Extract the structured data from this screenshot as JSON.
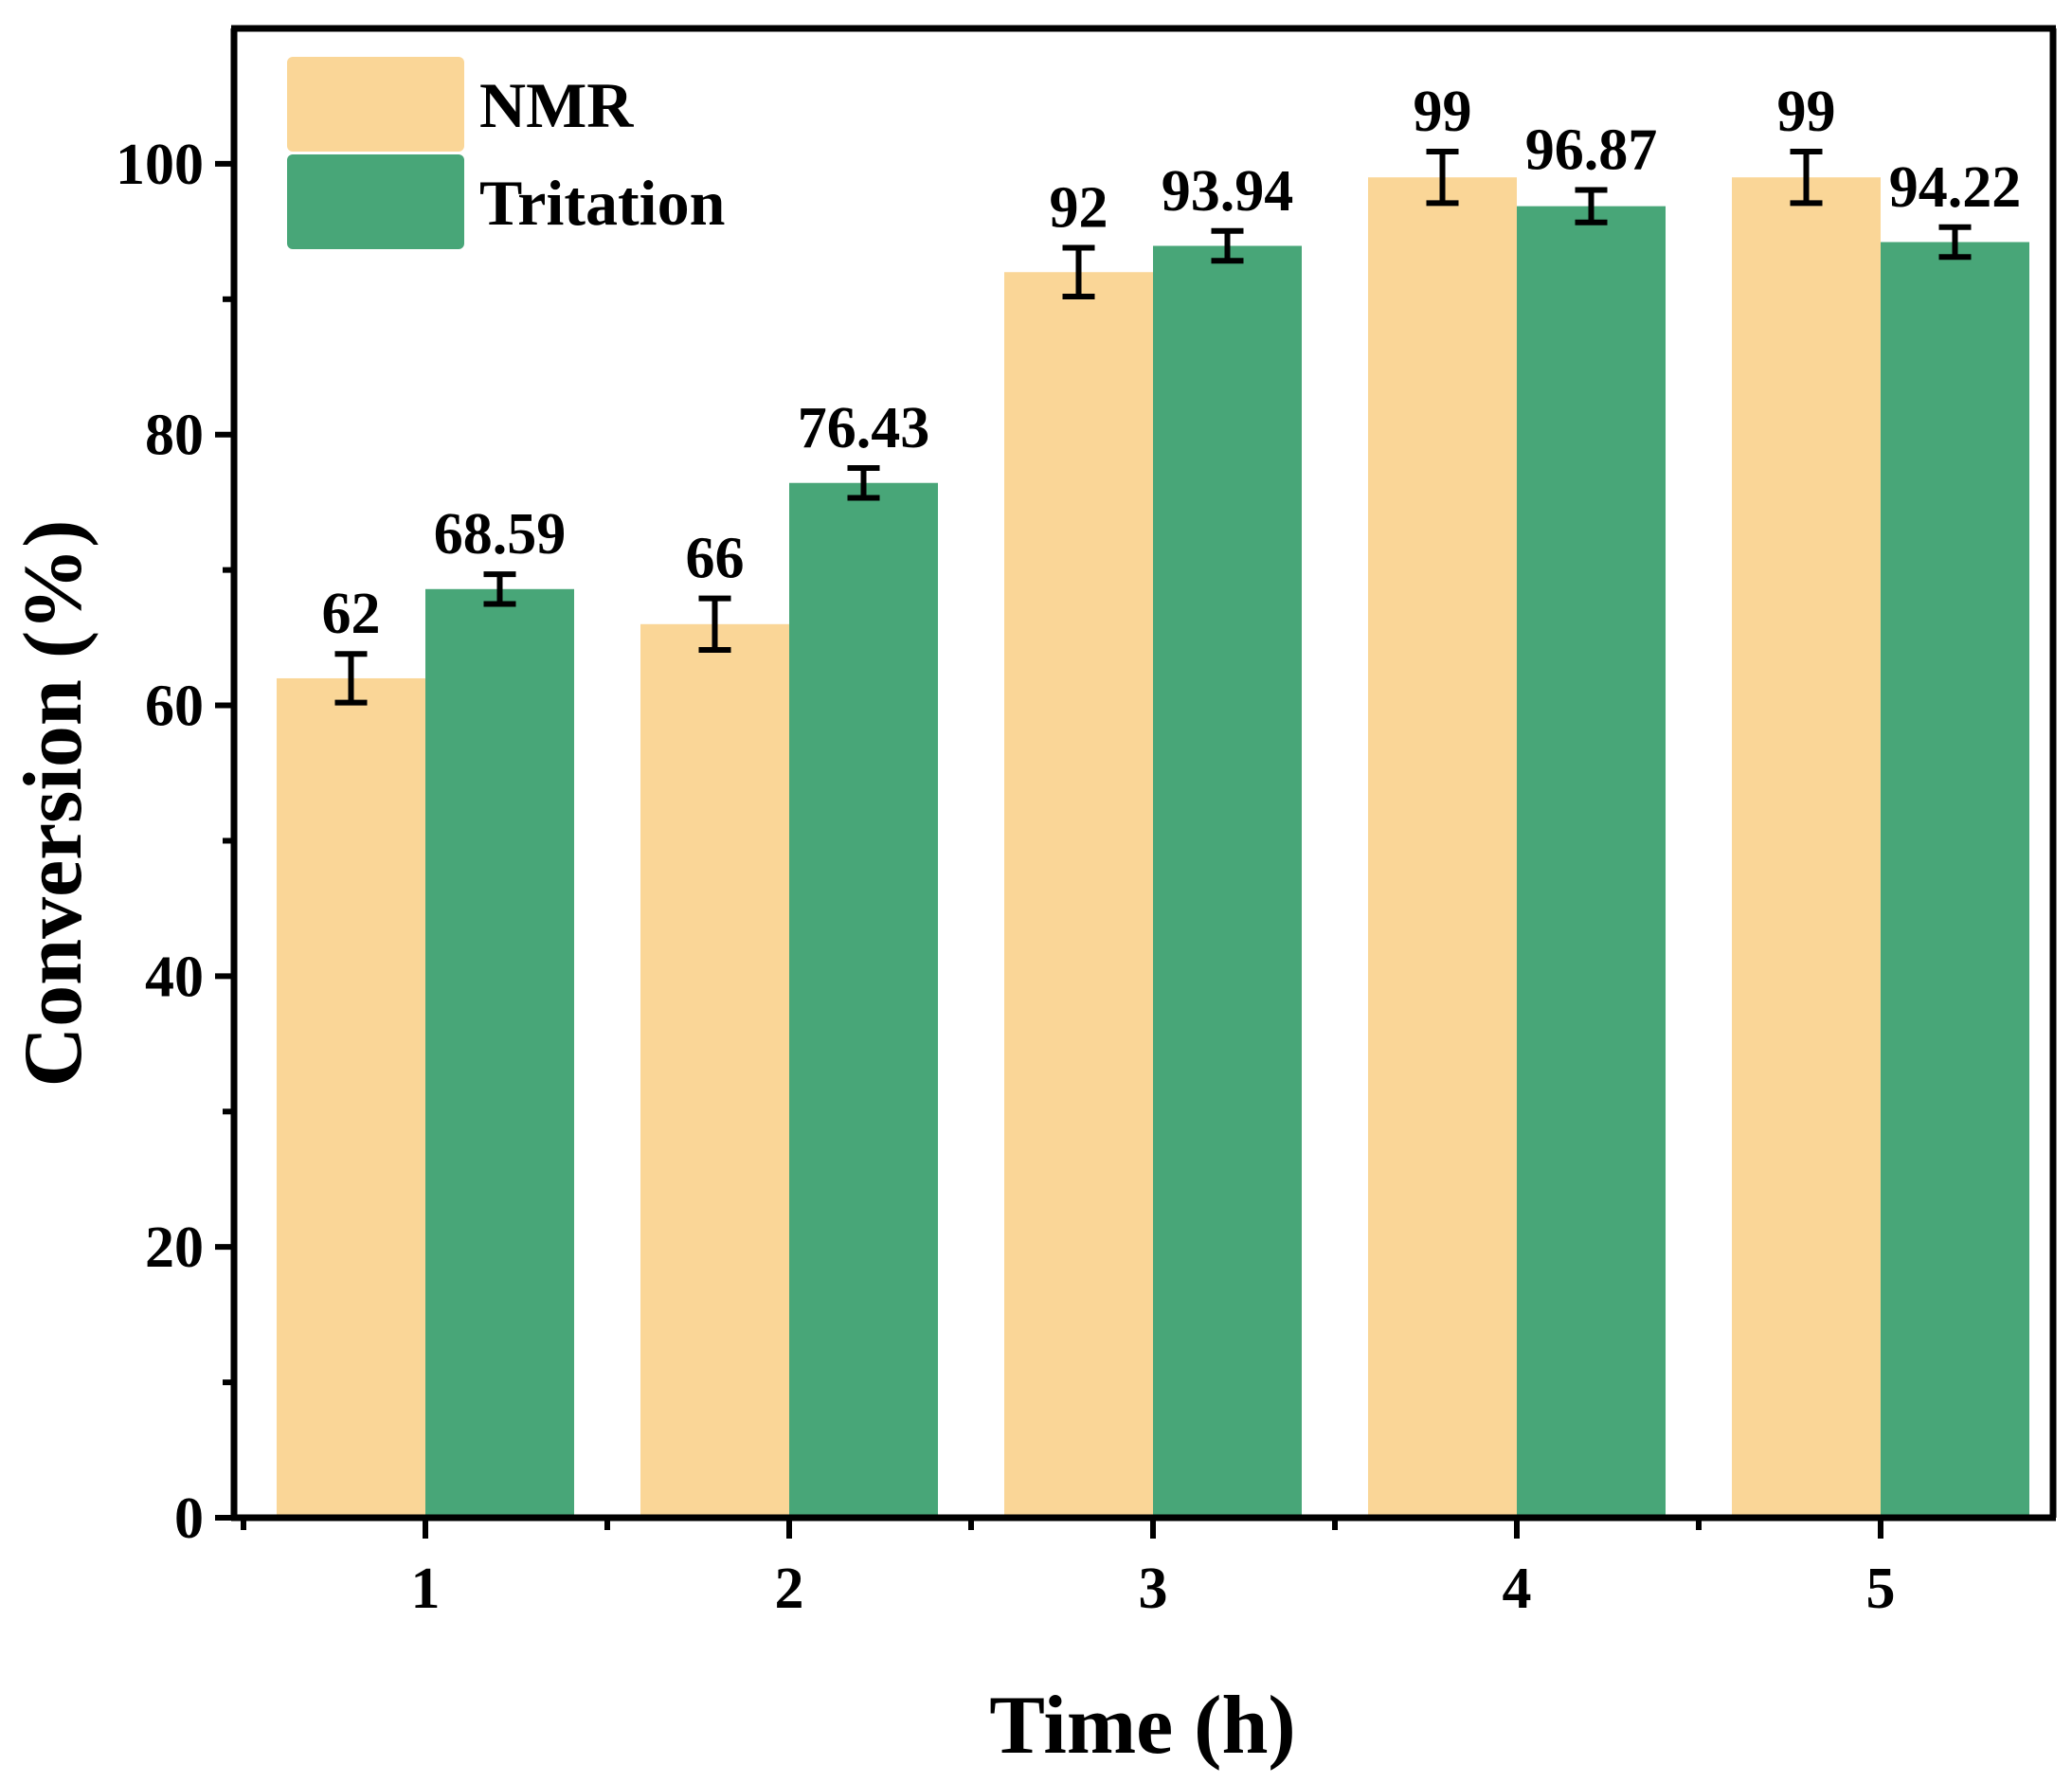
{
  "chart_data": {
    "type": "bar",
    "xlabel": "Time (h)",
    "ylabel": "Conversion (%)",
    "ylim": [
      0,
      110
    ],
    "y_ticks": [
      0,
      20,
      40,
      60,
      80,
      100
    ],
    "categories": [
      "1",
      "2",
      "3",
      "4",
      "5"
    ],
    "series": [
      {
        "name": "NMR",
        "color": "#fad697",
        "values": [
          62,
          66,
          92,
          99,
          99
        ],
        "errors": [
          1.8,
          1.9,
          1.8,
          1.9,
          1.9
        ],
        "labels": [
          "62",
          "66",
          "92",
          "99",
          "99"
        ]
      },
      {
        "name": "Tritation",
        "color": "#48a678",
        "values": [
          68.59,
          76.43,
          93.94,
          96.87,
          94.22
        ],
        "errors": [
          1.1,
          1.1,
          1.1,
          1.2,
          1.1
        ],
        "labels": [
          "68.59",
          "76.43",
          "93.94",
          "96.87",
          "94.22"
        ]
      }
    ],
    "legend": {
      "position": "top-left"
    },
    "grid": false
  }
}
